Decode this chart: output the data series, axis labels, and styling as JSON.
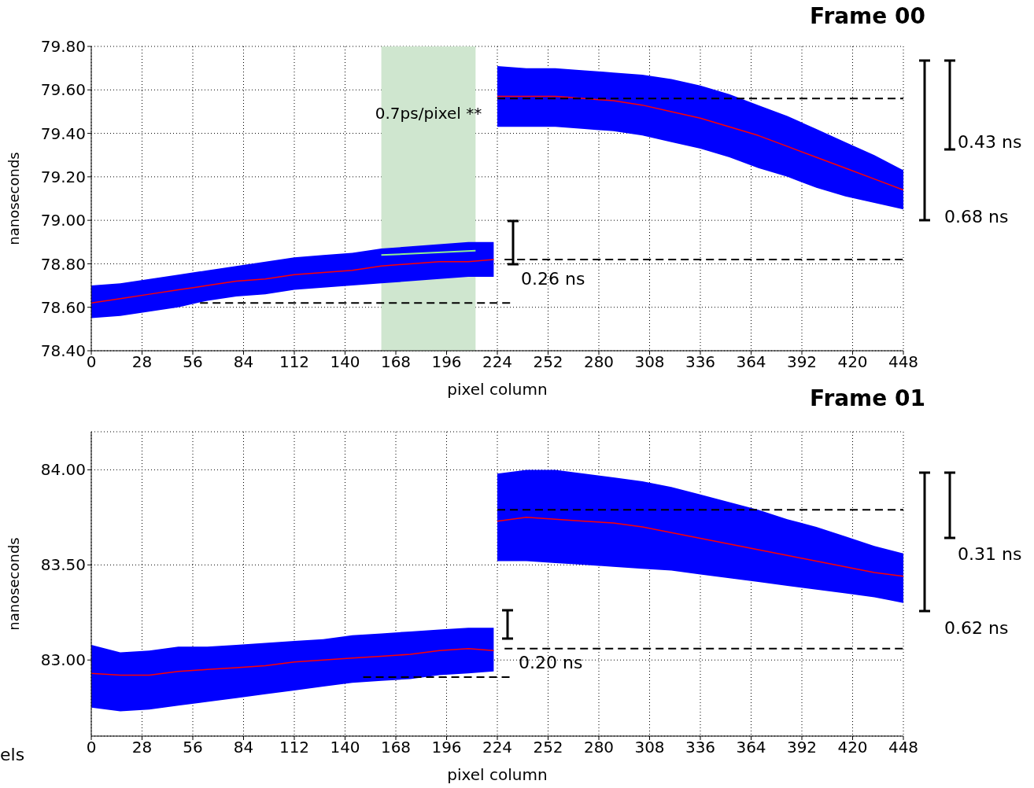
{
  "chart_data": [
    {
      "type": "line",
      "title": "Frame 00",
      "xlabel": "pixel column",
      "ylabel": "nanoseconds",
      "xlim": [
        0,
        448
      ],
      "xticks": [
        0,
        28,
        56,
        84,
        112,
        140,
        168,
        196,
        224,
        252,
        280,
        308,
        336,
        364,
        392,
        420,
        448
      ],
      "ylim": [
        78.4,
        79.8
      ],
      "yticks": [
        {
          "value": 78.4,
          "label": "78.40"
        },
        {
          "value": 78.6,
          "label": "78.60"
        },
        {
          "value": 78.8,
          "label": "78.80"
        },
        {
          "value": 79.0,
          "label": "79.00"
        },
        {
          "value": 79.2,
          "label": "79.20"
        },
        {
          "value": 79.4,
          "label": "79.40"
        },
        {
          "value": 79.6,
          "label": "79.60"
        },
        {
          "value": 79.8,
          "label": "79.80"
        }
      ],
      "grid": true,
      "marker": "none",
      "bands": [
        {
          "axis": "x",
          "from": 160,
          "to": 212,
          "label": "0.7ps/pixel **",
          "color": "#cfe6cf"
        }
      ],
      "series": [
        {
          "color": "#ff0000",
          "x": [
            0,
            16,
            32,
            48,
            64,
            80,
            96,
            112,
            128,
            144,
            160,
            176,
            192,
            208,
            222,
            223,
            224,
            240,
            256,
            272,
            288,
            304,
            320,
            336,
            352,
            368,
            384,
            400,
            416,
            432,
            448
          ],
          "values": [
            78.62,
            78.64,
            78.66,
            78.68,
            78.7,
            78.72,
            78.73,
            78.75,
            78.76,
            78.77,
            78.79,
            78.8,
            78.81,
            78.81,
            78.82,
            null,
            79.57,
            79.57,
            79.57,
            79.56,
            79.55,
            79.53,
            79.5,
            79.47,
            79.43,
            79.39,
            79.34,
            79.29,
            79.24,
            79.19,
            79.14
          ],
          "upper": [
            78.7,
            78.71,
            78.73,
            78.75,
            78.77,
            78.79,
            78.81,
            78.83,
            78.84,
            78.85,
            78.87,
            78.88,
            78.89,
            78.9,
            78.9,
            null,
            79.71,
            79.7,
            79.7,
            79.69,
            79.68,
            79.67,
            79.65,
            79.62,
            79.58,
            79.53,
            79.48,
            79.42,
            79.36,
            79.3,
            79.23
          ],
          "lower": [
            78.55,
            78.56,
            78.58,
            78.6,
            78.63,
            78.65,
            78.66,
            78.68,
            78.69,
            78.7,
            78.71,
            78.72,
            78.73,
            78.74,
            78.74,
            null,
            79.43,
            79.43,
            79.43,
            79.42,
            79.41,
            79.39,
            79.36,
            79.33,
            79.29,
            79.24,
            79.2,
            79.15,
            79.11,
            79.08,
            79.05
          ]
        },
        {
          "type": "line",
          "color": "#000000",
          "line_style": "dashed",
          "x": [
            224,
            448
          ],
          "values": [
            79.56,
            79.56
          ]
        },
        {
          "type": "line",
          "color": "#000000",
          "line_style": "dashed",
          "x": [
            228,
            448
          ],
          "values": [
            78.82,
            78.82
          ]
        },
        {
          "type": "line",
          "color": "#000000",
          "line_style": "dashed",
          "x": [
            60,
            232
          ],
          "values": [
            78.62,
            78.62
          ]
        },
        {
          "type": "line",
          "color": "#90ee90",
          "x": [
            160,
            212
          ],
          "values": [
            78.84,
            78.86
          ]
        }
      ],
      "annotations": [
        "0.43 ns",
        "0.68 ns",
        "0.26 ns"
      ]
    },
    {
      "type": "line",
      "title": "Frame 01",
      "xlabel": "pixel column",
      "ylabel": "nanoseconds",
      "xlim": [
        0,
        448
      ],
      "xticks": [
        0,
        28,
        56,
        84,
        112,
        140,
        168,
        196,
        224,
        252,
        280,
        308,
        336,
        364,
        392,
        420,
        448
      ],
      "ylim": [
        82.6,
        84.2
      ],
      "yticks": [
        {
          "value": 83.0,
          "label": "83.00"
        },
        {
          "value": 83.5,
          "label": "83.50"
        },
        {
          "value": 84.0,
          "label": "84.00"
        }
      ],
      "grid": true,
      "marker": "none",
      "series": [
        {
          "color": "#ff0000",
          "x": [
            0,
            16,
            32,
            48,
            64,
            80,
            96,
            112,
            128,
            144,
            160,
            176,
            192,
            208,
            222,
            223,
            224,
            240,
            256,
            272,
            288,
            304,
            320,
            336,
            352,
            368,
            384,
            400,
            416,
            432,
            448
          ],
          "values": [
            82.93,
            82.92,
            82.92,
            82.94,
            82.95,
            82.96,
            82.97,
            82.99,
            83.0,
            83.01,
            83.02,
            83.03,
            83.05,
            83.06,
            83.05,
            null,
            83.73,
            83.75,
            83.74,
            83.73,
            83.72,
            83.7,
            83.67,
            83.64,
            83.61,
            83.58,
            83.55,
            83.52,
            83.49,
            83.46,
            83.44
          ],
          "upper": [
            83.08,
            83.04,
            83.05,
            83.07,
            83.07,
            83.08,
            83.09,
            83.1,
            83.11,
            83.13,
            83.14,
            83.15,
            83.16,
            83.17,
            83.17,
            null,
            83.98,
            84.0,
            84.0,
            83.98,
            83.96,
            83.94,
            83.91,
            83.87,
            83.83,
            83.79,
            83.74,
            83.7,
            83.65,
            83.6,
            83.56
          ],
          "lower": [
            82.75,
            82.73,
            82.74,
            82.76,
            82.78,
            82.8,
            82.82,
            82.84,
            82.86,
            82.88,
            82.89,
            82.9,
            82.92,
            82.93,
            82.94,
            null,
            83.52,
            83.52,
            83.51,
            83.5,
            83.49,
            83.48,
            83.47,
            83.45,
            83.43,
            83.41,
            83.39,
            83.37,
            83.35,
            83.33,
            83.3
          ]
        },
        {
          "type": "line",
          "color": "#000000",
          "line_style": "dashed",
          "x": [
            224,
            448
          ],
          "values": [
            83.79,
            83.79
          ]
        },
        {
          "type": "line",
          "color": "#000000",
          "line_style": "dashed",
          "x": [
            228,
            448
          ],
          "values": [
            83.06,
            83.06
          ]
        },
        {
          "type": "line",
          "color": "#000000",
          "line_style": "dashed",
          "x": [
            150,
            232
          ],
          "values": [
            82.91,
            82.91
          ]
        }
      ],
      "annotations": [
        "0.31 ns",
        "0.62 ns",
        "0.20 ns",
        "els"
      ]
    }
  ]
}
